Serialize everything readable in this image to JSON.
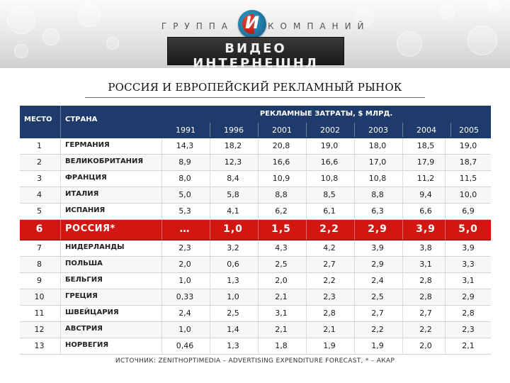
{
  "header": {
    "group_left": "ГРУППА",
    "group_right": "КОМПАНИЙ",
    "logo_mark": "И",
    "brand_name": "ВИДЕО ИНТЕРНЕШНЛ"
  },
  "title": "РОССИЯ И ЕВРОПЕЙСКИЙ РЕКЛАМНЫЙ РЫНОК",
  "table": {
    "col_rank": "МЕСТО",
    "col_country": "СТРАНА",
    "col_group": "РЕКЛАМНЫЕ ЗАТРАТЫ, $ МЛРД.",
    "years": [
      "1991",
      "1996",
      "2001",
      "2002",
      "2003",
      "2004",
      "2005"
    ],
    "rows": [
      {
        "rank": "1",
        "country": "ГЕРМАНИЯ",
        "values": [
          "14,3",
          "18,2",
          "20,8",
          "19,0",
          "18,0",
          "18,5",
          "19,0"
        ]
      },
      {
        "rank": "2",
        "country": "ВЕЛИКОБРИТАНИЯ",
        "values": [
          "8,9",
          "12,3",
          "16,6",
          "16,6",
          "17,0",
          "17,9",
          "18,7"
        ]
      },
      {
        "rank": "3",
        "country": "ФРАНЦИЯ",
        "values": [
          "8,0",
          "8,4",
          "10,9",
          "10,8",
          "10,8",
          "11,2",
          "11,5"
        ]
      },
      {
        "rank": "4",
        "country": "ИТАЛИЯ",
        "values": [
          "5,0",
          "5,8",
          "8,8",
          "8,5",
          "8,8",
          "9,4",
          "10,0"
        ]
      },
      {
        "rank": "5",
        "country": "ИСПАНИЯ",
        "values": [
          "5,3",
          "4,1",
          "6,2",
          "6,1",
          "6,3",
          "6,6",
          "6,9"
        ]
      },
      {
        "rank": "6",
        "country": "РОССИЯ*",
        "values": [
          "…",
          "1,0",
          "1,5",
          "2,2",
          "2,9",
          "3,9",
          "5,0"
        ],
        "highlight": true
      },
      {
        "rank": "7",
        "country": "НИДЕРЛАНДЫ",
        "values": [
          "2,3",
          "3,2",
          "4,3",
          "4,2",
          "3,9",
          "3,8",
          "3,9"
        ]
      },
      {
        "rank": "8",
        "country": "ПОЛЬША",
        "values": [
          "2,0",
          "0,6",
          "2,5",
          "2,7",
          "2,9",
          "3,1",
          "3,3"
        ]
      },
      {
        "rank": "9",
        "country": "БЕЛЬГИЯ",
        "values": [
          "1,0",
          "1,3",
          "2,0",
          "2,2",
          "2,4",
          "2,8",
          "3,1"
        ]
      },
      {
        "rank": "10",
        "country": "ГРЕЦИЯ",
        "values": [
          "0,33",
          "1,0",
          "2,1",
          "2,3",
          "2,5",
          "2,8",
          "2,9"
        ]
      },
      {
        "rank": "11",
        "country": "ШВЕЙЦАРИЯ",
        "values": [
          "2,4",
          "2,5",
          "3,1",
          "2,8",
          "2,7",
          "2,7",
          "2,8"
        ]
      },
      {
        "rank": "12",
        "country": "АВСТРИЯ",
        "values": [
          "1,0",
          "1,4",
          "2,1",
          "2,1",
          "2,2",
          "2,2",
          "2,3"
        ]
      },
      {
        "rank": "13",
        "country": "НОРВЕГИЯ",
        "values": [
          "0,46",
          "1,3",
          "1,8",
          "1,9",
          "1,9",
          "2,0",
          "2,1"
        ]
      }
    ]
  },
  "source": "ИСТОЧНИК:  ZENITHOPTIMEDIA – ADVERTISING EXPENDITURE FORECAST,  * – АКАР",
  "colors": {
    "header_bg": "#1e3b6c",
    "highlight_bg": "#d21712"
  }
}
